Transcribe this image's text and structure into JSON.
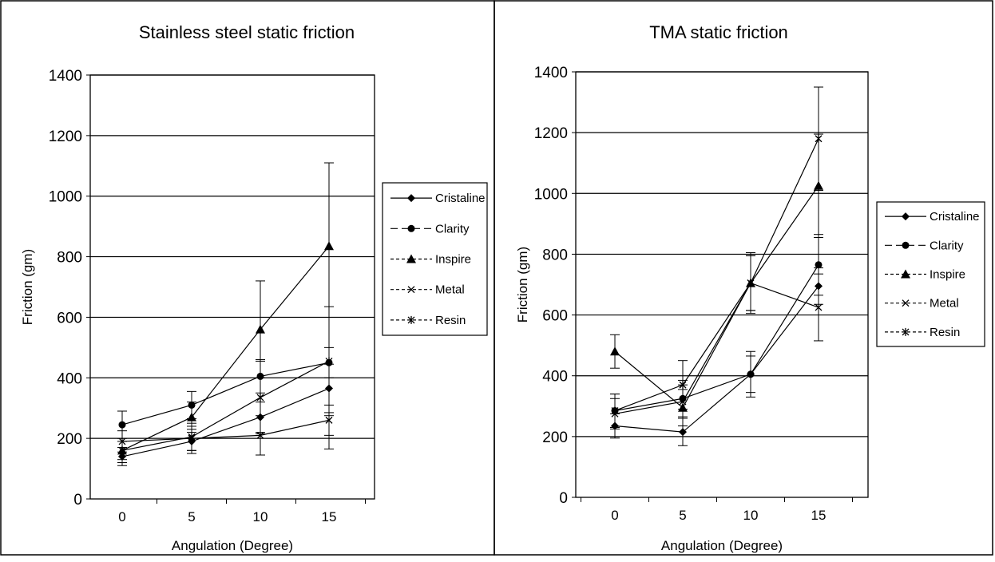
{
  "chart_data": [
    {
      "type": "line",
      "title": "Stainless steel static friction",
      "xlabel": "Angulation (Degree)",
      "ylabel": "Friction (gm)",
      "categories": [
        "0",
        "5",
        "10",
        "15"
      ],
      "ylim": [
        0,
        1400
      ],
      "yticks": [
        "0",
        "200",
        "400",
        "600",
        "800",
        "1000",
        "1200",
        "1400"
      ],
      "grid": true,
      "legend": "right",
      "series": [
        {
          "name": "Cristaline",
          "marker": "diamond",
          "values": [
            140,
            190,
            270,
            365
          ],
          "err_low": [
            30,
            40,
            50,
            80
          ],
          "err_high": [
            30,
            40,
            50,
            80
          ]
        },
        {
          "name": "Clarity",
          "marker": "circle",
          "values": [
            245,
            310,
            405,
            450
          ],
          "err_low": [
            45,
            45,
            55,
            50
          ],
          "err_high": [
            45,
            45,
            55,
            50
          ]
        },
        {
          "name": "Inspire",
          "marker": "triangle",
          "values": [
            160,
            270,
            560,
            835
          ],
          "err_low": [
            30,
            50,
            160,
            670
          ],
          "err_high": [
            30,
            50,
            160,
            275
          ]
        },
        {
          "name": "Metal",
          "marker": "x",
          "values": [
            190,
            200,
            210,
            260
          ],
          "err_low": [
            35,
            40,
            65,
            50
          ],
          "err_high": [
            35,
            40,
            65,
            50
          ]
        },
        {
          "name": "Resin",
          "marker": "star",
          "values": [
            160,
            205,
            335,
            455
          ],
          "err_low": [
            40,
            45,
            120,
            180
          ],
          "err_high": [
            40,
            45,
            120,
            180
          ]
        }
      ]
    },
    {
      "type": "line",
      "title": "TMA static friction",
      "xlabel": "Angulation (Degree)",
      "ylabel": "Friction (gm)",
      "categories": [
        "0",
        "5",
        "10",
        "15"
      ],
      "ylim": [
        0,
        1400
      ],
      "yticks": [
        "0",
        "200",
        "400",
        "600",
        "800",
        "1000",
        "1200",
        "1400"
      ],
      "grid": true,
      "legend": "right",
      "series": [
        {
          "name": "Cristaline",
          "marker": "diamond",
          "values": [
            235,
            215,
            405,
            695
          ],
          "err_low": [
            40,
            45,
            60,
            60
          ],
          "err_high": [
            40,
            45,
            60,
            60
          ]
        },
        {
          "name": "Clarity",
          "marker": "circle",
          "values": [
            285,
            325,
            405,
            765
          ],
          "err_low": [
            55,
            60,
            75,
            100
          ],
          "err_high": [
            55,
            60,
            75,
            100
          ]
        },
        {
          "name": "Inspire",
          "marker": "triangle",
          "values": [
            480,
            295,
            705,
            1025
          ],
          "err_low": [
            55,
            60,
            90,
            170
          ],
          "err_high": [
            55,
            60,
            90,
            170
          ]
        },
        {
          "name": "Metal",
          "marker": "x",
          "values": [
            275,
            315,
            705,
            625
          ],
          "err_low": [
            50,
            55,
            90,
            110
          ],
          "err_high": [
            50,
            55,
            90,
            110
          ]
        },
        {
          "name": "Resin",
          "marker": "star",
          "values": [
            285,
            370,
            705,
            1180
          ],
          "err_low": [
            55,
            80,
            100,
            170
          ],
          "err_high": [
            55,
            80,
            100,
            170
          ]
        }
      ]
    }
  ]
}
